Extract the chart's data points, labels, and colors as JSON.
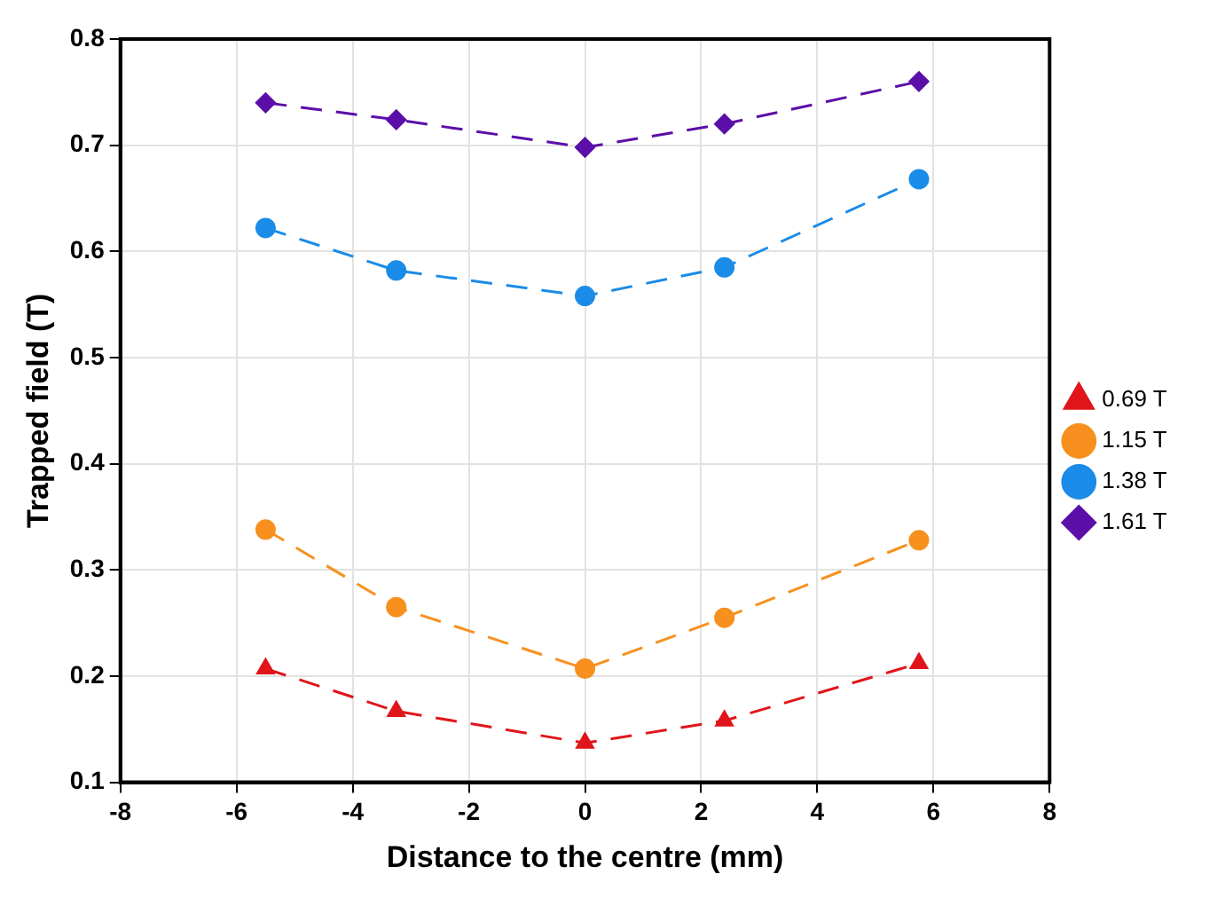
{
  "chart_data": {
    "type": "line",
    "xlabel": "Distance to the centre (mm)",
    "ylabel": "Trapped field (T)",
    "x": [
      -5.5,
      -3.25,
      0,
      2.4,
      5.75
    ],
    "series": [
      {
        "name": "0.69 T",
        "color": "#e0151b",
        "marker": "triangle",
        "values": [
          0.207,
          0.167,
          0.137,
          0.158,
          0.212
        ]
      },
      {
        "name": "1.15 T",
        "color": "#f7901e",
        "marker": "circle",
        "values": [
          0.338,
          0.265,
          0.207,
          0.255,
          0.328
        ]
      },
      {
        "name": "1.38 T",
        "color": "#1a8ce8",
        "marker": "circle",
        "values": [
          0.622,
          0.582,
          0.558,
          0.585,
          0.668
        ]
      },
      {
        "name": "1.61 T",
        "color": "#5b0fa8",
        "marker": "diamond",
        "values": [
          0.74,
          0.724,
          0.698,
          0.72,
          0.76
        ]
      }
    ],
    "xlim": [
      -8,
      8
    ],
    "xticks": [
      -8,
      -6,
      -4,
      -2,
      0,
      2,
      4,
      6,
      8
    ],
    "ylim": [
      0.1,
      0.8
    ],
    "yticks": [
      0.1,
      0.2,
      0.3,
      0.4,
      0.5,
      0.6,
      0.7,
      0.8
    ],
    "grid": true,
    "legend": "right",
    "line_style": "dashed"
  }
}
